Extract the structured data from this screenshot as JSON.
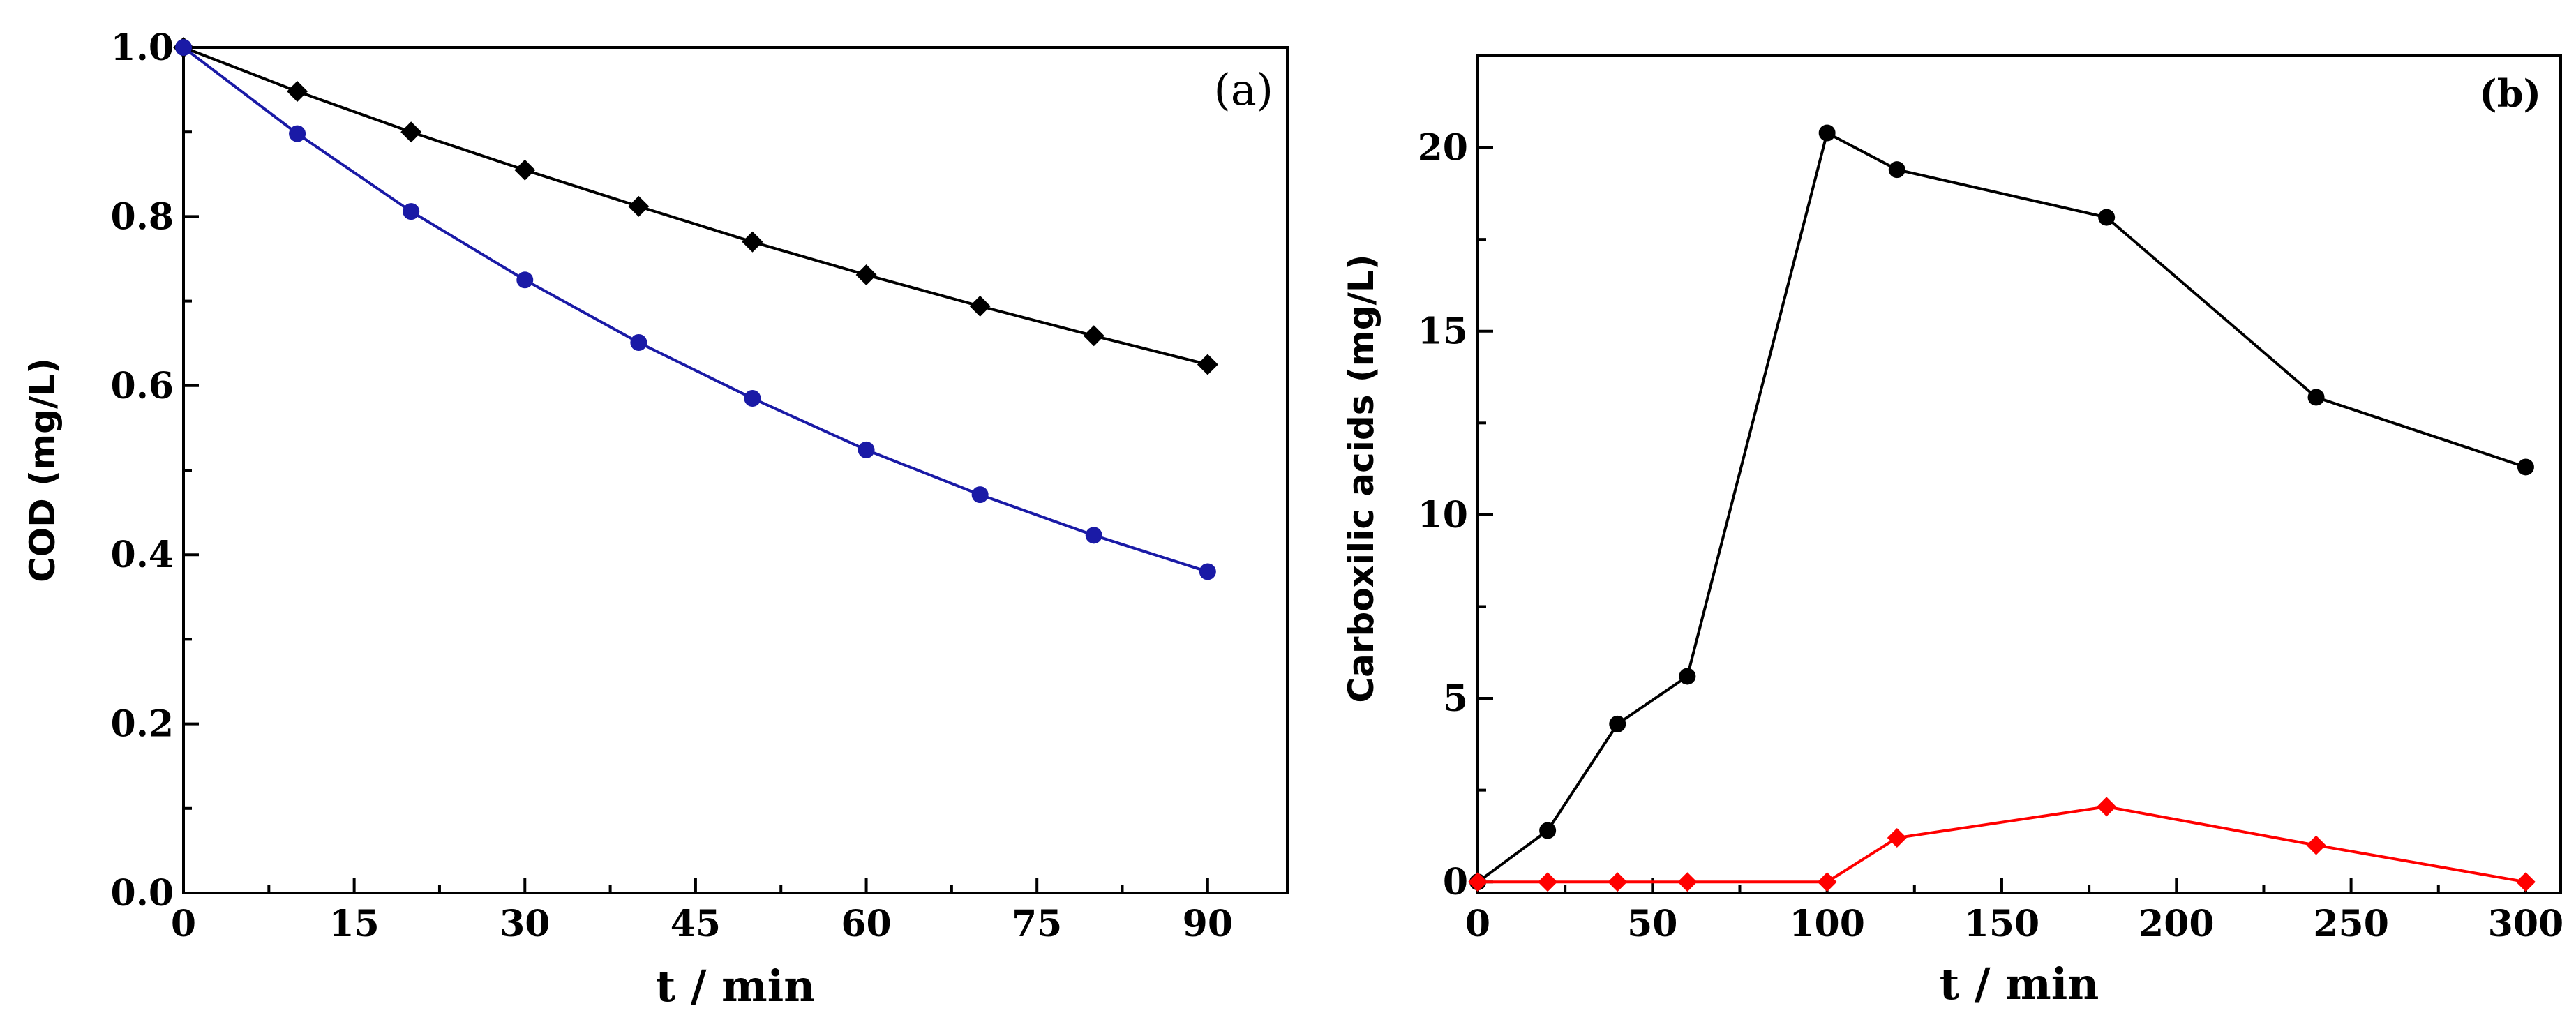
{
  "chart_data": [
    {
      "panel_label": "(a)",
      "type": "line",
      "xlabel": "t / min",
      "ylabel": "COD (mg/L)",
      "xlim": [
        0,
        97
      ],
      "ylim": [
        0,
        1.0
      ],
      "xticks": [
        0,
        15,
        30,
        45,
        60,
        75,
        90
      ],
      "xtick_labels": [
        "0",
        "15",
        "30",
        "45",
        "60",
        "75",
        "90"
      ],
      "yticks": [
        0,
        0.2,
        0.4,
        0.6,
        0.8,
        1.0
      ],
      "ytick_labels": [
        "0.0",
        "0.2",
        "0.4",
        "0.6",
        "0.8",
        "1.0"
      ],
      "series": [
        {
          "name": "black diamonds",
          "color": "#000000",
          "marker": "diamond",
          "x": [
            0,
            10,
            20,
            30,
            40,
            50,
            60,
            70,
            80,
            90
          ],
          "y": [
            1.0,
            0.948,
            0.9,
            0.855,
            0.812,
            0.77,
            0.731,
            0.694,
            0.659,
            0.625
          ]
        },
        {
          "name": "blue circles",
          "color": "#1a1aa6",
          "marker": "circle",
          "x": [
            0,
            10,
            20,
            30,
            40,
            50,
            60,
            70,
            80,
            90
          ],
          "y": [
            1.0,
            0.898,
            0.806,
            0.725,
            0.651,
            0.585,
            0.524,
            0.471,
            0.423,
            0.38
          ]
        }
      ]
    },
    {
      "panel_label": "(b)",
      "type": "line",
      "xlabel": "t / min",
      "ylabel": "Carboxilic acids (mg/L)",
      "xlim": [
        0,
        310
      ],
      "ylim": [
        -0.3,
        22.5
      ],
      "xticks": [
        0,
        50,
        100,
        150,
        200,
        250,
        300
      ],
      "xtick_labels": [
        "0",
        "50",
        "100",
        "150",
        "200",
        "250",
        "300"
      ],
      "yticks": [
        0,
        5,
        10,
        15,
        20
      ],
      "ytick_labels": [
        "0",
        "5",
        "10",
        "15",
        "20"
      ],
      "series": [
        {
          "name": "black circles",
          "color": "#000000",
          "marker": "circle",
          "x": [
            0,
            20,
            40,
            60,
            100,
            120,
            180,
            240,
            300
          ],
          "y": [
            0,
            1.4,
            4.3,
            5.6,
            20.4,
            19.4,
            18.1,
            13.2,
            11.3
          ]
        },
        {
          "name": "red diamonds",
          "color": "#ff0000",
          "marker": "diamond",
          "x": [
            0,
            20,
            40,
            60,
            100,
            120,
            180,
            240,
            300
          ],
          "y": [
            0,
            0,
            0,
            0,
            0,
            1.2,
            2.05,
            1.0,
            0
          ]
        }
      ]
    }
  ]
}
